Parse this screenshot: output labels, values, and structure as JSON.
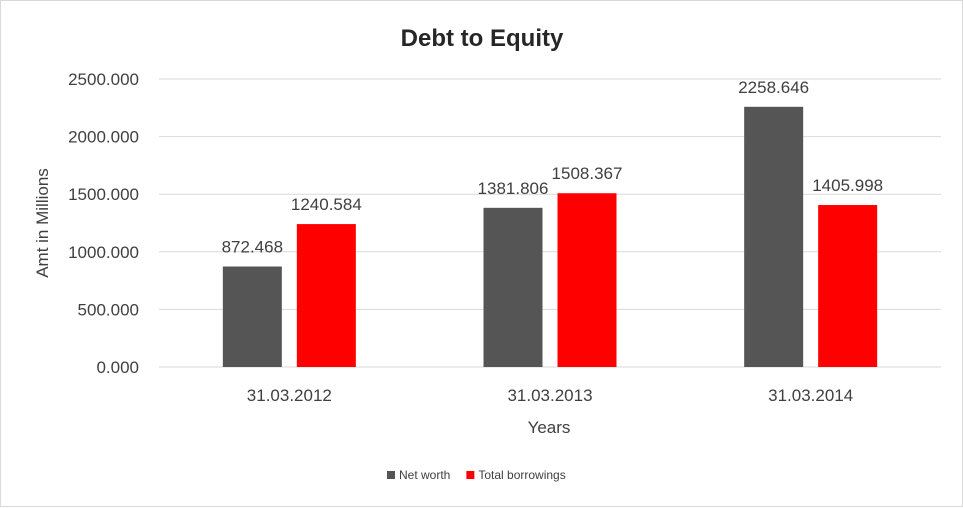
{
  "chart_data": {
    "type": "bar",
    "title": "Debt to Equity",
    "xlabel": "Years",
    "ylabel": "Amt in Millions",
    "categories": [
      "31.03.2012",
      "31.03.2013",
      "31.03.2014"
    ],
    "series": [
      {
        "name": "Net worth",
        "color": "#555555",
        "values": [
          872.468,
          1381.806,
          2258.646
        ],
        "labels": [
          "872.468",
          "1381.806",
          "2258.646"
        ]
      },
      {
        "name": "Total borrowings",
        "color": "#ff0000",
        "values": [
          1240.584,
          1508.367,
          1405.998
        ],
        "labels": [
          "1240.584",
          "1508.367",
          "1405.998"
        ]
      }
    ],
    "ylim": [
      0,
      2500
    ],
    "yticks": [
      "0.000",
      "500.000",
      "1000.000",
      "1500.000",
      "2000.000",
      "2500.000"
    ],
    "grid": true,
    "legend_position": "bottom"
  }
}
